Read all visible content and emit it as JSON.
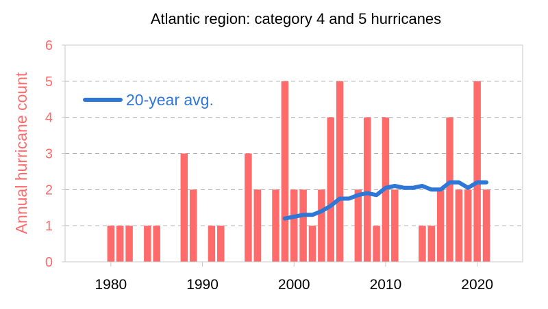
{
  "colors": {
    "bars": "#ff6b6b",
    "axis_text": "#ff6b6b",
    "line": "#2f77d6",
    "grid": "#b0b0b0",
    "frame": "#c8c8c8"
  },
  "chart_data": {
    "type": "bar",
    "title": "Atlantic region: category 4 and 5 hurricanes",
    "xlabel": "",
    "ylabel": "Annual hurricane count",
    "xlim": [
      1975,
      2026
    ],
    "ylim": [
      0,
      6
    ],
    "yticks": [
      "0",
      "1",
      "2",
      "3",
      "4",
      "5",
      "6"
    ],
    "xticks": [
      {
        "value": 1980,
        "label": "1980"
      },
      {
        "value": 1990,
        "label": "1990"
      },
      {
        "value": 2000,
        "label": "2000"
      },
      {
        "value": 2010,
        "label": "2010"
      },
      {
        "value": 2020,
        "label": "2020"
      }
    ],
    "grid": "horizontal dashed",
    "legend": {
      "placement": "top-left"
    },
    "series": [
      {
        "type": "bar",
        "points": [
          {
            "x": 1980,
            "y": 1
          },
          {
            "x": 1981,
            "y": 1
          },
          {
            "x": 1982,
            "y": 1
          },
          {
            "x": 1984,
            "y": 1
          },
          {
            "x": 1985,
            "y": 1
          },
          {
            "x": 1988,
            "y": 3
          },
          {
            "x": 1989,
            "y": 2
          },
          {
            "x": 1991,
            "y": 1
          },
          {
            "x": 1992,
            "y": 1
          },
          {
            "x": 1995,
            "y": 3
          },
          {
            "x": 1996,
            "y": 2
          },
          {
            "x": 1998,
            "y": 2
          },
          {
            "x": 1999,
            "y": 5
          },
          {
            "x": 2000,
            "y": 2
          },
          {
            "x": 2001,
            "y": 2
          },
          {
            "x": 2002,
            "y": 1
          },
          {
            "x": 2003,
            "y": 2
          },
          {
            "x": 2004,
            "y": 4
          },
          {
            "x": 2005,
            "y": 5
          },
          {
            "x": 2007,
            "y": 2
          },
          {
            "x": 2008,
            "y": 4
          },
          {
            "x": 2009,
            "y": 1
          },
          {
            "x": 2010,
            "y": 4
          },
          {
            "x": 2011,
            "y": 2
          },
          {
            "x": 2014,
            "y": 1
          },
          {
            "x": 2015,
            "y": 1
          },
          {
            "x": 2016,
            "y": 2
          },
          {
            "x": 2017,
            "y": 4
          },
          {
            "x": 2018,
            "y": 2
          },
          {
            "x": 2019,
            "y": 2
          },
          {
            "x": 2020,
            "y": 5
          },
          {
            "x": 2021,
            "y": 2
          }
        ]
      },
      {
        "type": "line",
        "name": "20-year avg.",
        "points": [
          {
            "x": 1999,
            "y": 1.2
          },
          {
            "x": 2000,
            "y": 1.25
          },
          {
            "x": 2001,
            "y": 1.3
          },
          {
            "x": 2002,
            "y": 1.3
          },
          {
            "x": 2003,
            "y": 1.4
          },
          {
            "x": 2004,
            "y": 1.55
          },
          {
            "x": 2005,
            "y": 1.75
          },
          {
            "x": 2006,
            "y": 1.75
          },
          {
            "x": 2007,
            "y": 1.85
          },
          {
            "x": 2008,
            "y": 1.9
          },
          {
            "x": 2009,
            "y": 1.85
          },
          {
            "x": 2010,
            "y": 2.05
          },
          {
            "x": 2011,
            "y": 2.1
          },
          {
            "x": 2012,
            "y": 2.05
          },
          {
            "x": 2013,
            "y": 2.05
          },
          {
            "x": 2014,
            "y": 2.1
          },
          {
            "x": 2015,
            "y": 2.0
          },
          {
            "x": 2016,
            "y": 2.0
          },
          {
            "x": 2017,
            "y": 2.2
          },
          {
            "x": 2018,
            "y": 2.2
          },
          {
            "x": 2019,
            "y": 2.05
          },
          {
            "x": 2020,
            "y": 2.2
          },
          {
            "x": 2021,
            "y": 2.2
          }
        ]
      }
    ]
  }
}
